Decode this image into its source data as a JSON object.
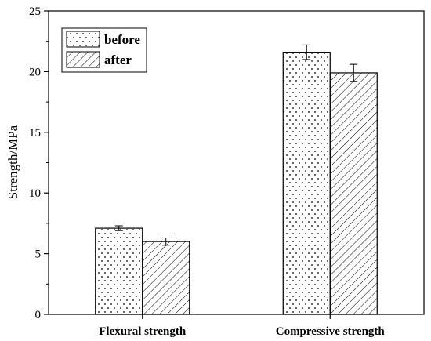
{
  "chart_data": {
    "type": "bar",
    "title": "",
    "xlabel": "",
    "ylabel": "Strength/MPa",
    "categories": [
      "Flexural strength",
      "Compressive strength"
    ],
    "series": [
      {
        "name": "before",
        "pattern": "dots",
        "values": [
          7.1,
          21.6
        ],
        "errors": [
          0.2,
          0.6
        ]
      },
      {
        "name": "after",
        "pattern": "hatch",
        "values": [
          6.0,
          19.9
        ],
        "errors": [
          0.3,
          0.7
        ]
      }
    ],
    "ylim": [
      0,
      25
    ],
    "yticks": [
      0,
      5,
      10,
      15,
      20,
      25
    ],
    "grid": false,
    "legend_position": "top-left",
    "colors": {
      "bar_fill": "#ffffff",
      "stroke": "#000000"
    }
  }
}
